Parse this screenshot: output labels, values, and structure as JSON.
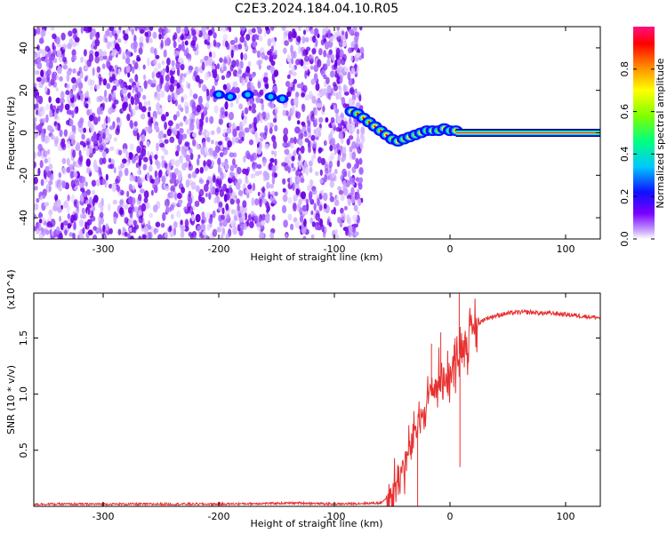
{
  "title": "C2E3.2024.184.04.10.R05",
  "colors": {
    "snr_line": "#e83030",
    "scatter": "#7a10ee",
    "colorbar": [
      "#ffffff",
      "#c8a0ff",
      "#7a00ff",
      "#1010ff",
      "#00c8ff",
      "#00ff80",
      "#80ff00",
      "#ffff00",
      "#ff8000",
      "#ff0000",
      "#ff1080"
    ]
  },
  "chart_data": [
    {
      "type": "heatmap",
      "title": "C2E3.2024.184.04.10.R05",
      "xlabel": "Height of straight line (km)",
      "ylabel": "Frequency (Hz)",
      "xlim": [
        -360,
        130
      ],
      "ylim": [
        -50,
        50
      ],
      "x_ticks": [
        -300,
        -200,
        -100,
        0,
        100
      ],
      "x_tick_labels": [
        "-300",
        "-200",
        "-100",
        "0",
        "100"
      ],
      "y_ticks": [
        -40,
        -20,
        0,
        20,
        40
      ],
      "y_tick_labels": [
        "-40",
        "-20",
        "0",
        "20",
        "40"
      ],
      "colorbar": {
        "label": "Normalized spectral amplitude",
        "range": [
          0,
          1
        ],
        "ticks": [
          0.0,
          0.2,
          0.4,
          0.6,
          0.8
        ],
        "tick_labels": [
          "0.0",
          "0.2",
          "0.4",
          "0.6",
          "0.8"
        ]
      },
      "noise_region_x": [
        -360,
        -75
      ],
      "gap_x": -147,
      "signal_track": {
        "x": [
          -85,
          -80,
          -75,
          -70,
          -65,
          -60,
          -55,
          -50,
          -45,
          -40,
          -35,
          -30,
          -25,
          -20,
          -15,
          -10,
          -5,
          0,
          5
        ],
        "y": [
          10,
          9,
          7,
          5,
          3,
          1,
          -1,
          -3,
          -4,
          -3,
          -2,
          -1,
          0,
          1,
          1,
          1,
          2,
          1,
          1
        ]
      },
      "blobs_near_20hz": [
        {
          "x": -200,
          "y": 18
        },
        {
          "x": -190,
          "y": 17
        },
        {
          "x": -175,
          "y": 18
        },
        {
          "x": -155,
          "y": 17
        },
        {
          "x": -145,
          "y": 16
        }
      ],
      "steady_band": {
        "x": [
          5,
          130
        ],
        "y": 0
      }
    },
    {
      "type": "line",
      "xlabel": "Height of straight line (km)",
      "ylabel": "SNR (10 * v/v)",
      "y_multiplier": "(x10^4)",
      "xlim": [
        -360,
        130
      ],
      "ylim": [
        0,
        1.9
      ],
      "x_ticks": [
        -300,
        -200,
        -100,
        0,
        100
      ],
      "x_tick_labels": [
        "-300",
        "-200",
        "-100",
        "0",
        "100"
      ],
      "y_ticks": [
        0.5,
        1.0,
        1.5
      ],
      "y_tick_labels": [
        "0.5",
        "1.0",
        "1.5"
      ],
      "series": [
        {
          "x": [
            -360,
            -300,
            -200,
            -130,
            -100,
            -60,
            -50,
            -45,
            -40,
            -35,
            -30,
            -25,
            -20,
            -15,
            -10,
            -5,
            0,
            5,
            10,
            15,
            20,
            25,
            30,
            40,
            50,
            60,
            70,
            80,
            90,
            100,
            110,
            120,
            130
          ],
          "y": [
            0.02,
            0.02,
            0.02,
            0.03,
            0.02,
            0.03,
            0.12,
            0.25,
            0.35,
            0.5,
            0.65,
            0.8,
            0.95,
            1.05,
            1.1,
            1.15,
            1.2,
            1.3,
            1.4,
            1.5,
            1.58,
            1.63,
            1.67,
            1.7,
            1.72,
            1.73,
            1.73,
            1.72,
            1.72,
            1.71,
            1.7,
            1.69,
            1.68
          ]
        }
      ]
    }
  ]
}
